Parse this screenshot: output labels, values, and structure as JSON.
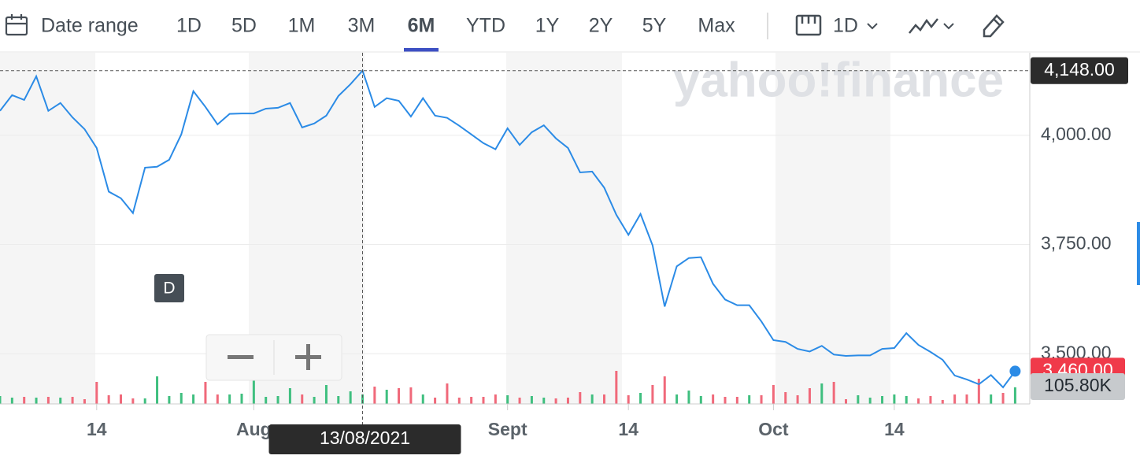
{
  "toolbar": {
    "date_range": "Date range",
    "ranges": [
      "1D",
      "5D",
      "1M",
      "3M",
      "6M",
      "YTD",
      "1Y",
      "2Y",
      "5Y",
      "Max"
    ],
    "selected_range": 4,
    "interval": "1D"
  },
  "watermark": "yahoo!finance",
  "badge": "D",
  "chart_data": {
    "type": "line",
    "categories": [
      null,
      null,
      null,
      null,
      null,
      null,
      null,
      null,
      "14",
      null,
      null,
      null,
      null,
      null,
      null,
      null,
      null,
      null,
      null,
      null,
      null,
      "Aug",
      null,
      null,
      null,
      null,
      null,
      null,
      null,
      null,
      null,
      null,
      null,
      null,
      null,
      null,
      null,
      null,
      null,
      null,
      null,
      null,
      "Sept",
      null,
      null,
      null,
      null,
      null,
      null,
      null,
      null,
      null,
      "14",
      null,
      null,
      null,
      null,
      null,
      null,
      null,
      null,
      null,
      null,
      null,
      "Oct",
      null,
      null,
      null,
      null,
      null,
      null,
      null,
      null,
      null,
      "14",
      null,
      null,
      null,
      null,
      null,
      null,
      null,
      null,
      null,
      null
    ],
    "series": [
      {
        "color": "#2b8be6",
        "values": [
          4056,
          4092,
          4081,
          4135,
          4056,
          4074,
          4041,
          4014,
          3971,
          3871,
          3856,
          3822,
          3926,
          3928,
          3944,
          4002,
          4101,
          4065,
          4025,
          4049,
          4050,
          4050,
          4061,
          4063,
          4074,
          4018,
          4027,
          4045,
          4090,
          4117,
          4148,
          4065,
          4085,
          4079,
          4043,
          4085,
          4045,
          4040,
          4022,
          4002,
          3982,
          3968,
          4016,
          3978,
          4007,
          4023,
          3993,
          3971,
          3915,
          3917,
          3880,
          3818,
          3772,
          3820,
          3748,
          3608,
          3700,
          3719,
          3721,
          3660,
          3624,
          3611,
          3611,
          3574,
          3531,
          3527,
          3511,
          3505,
          3518,
          3498,
          3495,
          3496,
          3496,
          3511,
          3513,
          3547,
          3520,
          3504,
          3486,
          3450,
          3441,
          3430,
          3451,
          3423,
          3460
        ]
      }
    ],
    "volume": {
      "values": [
        50,
        40,
        45,
        40,
        45,
        40,
        45,
        30,
        140,
        55,
        60,
        35,
        35,
        175,
        50,
        70,
        60,
        140,
        60,
        60,
        65,
        155,
        45,
        50,
        100,
        60,
        45,
        120,
        50,
        80,
        60,
        110,
        90,
        100,
        105,
        60,
        40,
        130,
        40,
        45,
        45,
        60,
        55,
        40,
        50,
        40,
        35,
        40,
        75,
        60,
        60,
        210,
        55,
        70,
        120,
        175,
        60,
        85,
        50,
        60,
        45,
        45,
        55,
        55,
        120,
        75,
        55,
        100,
        130,
        140,
        30,
        55,
        40,
        50,
        60,
        50,
        35,
        50,
        25,
        60,
        60,
        160,
        60,
        70,
        105.8
      ],
      "lim": [
        0,
        230
      ],
      "up_color": "#3fbf7f",
      "down_color": "#f0697a",
      "last_label": "105.80K"
    },
    "ylim": [
      3385,
      4189
    ],
    "yticks": [
      {
        "value": 3500,
        "label": "3,500.00"
      },
      {
        "value": 3750,
        "label": "3,750.00"
      },
      {
        "value": 4000,
        "label": "4,000.00"
      }
    ],
    "grid": true,
    "last_price": {
      "value": 3460,
      "label": "3,460.00"
    },
    "crosshair": {
      "index": 30,
      "date": "13/08/2021",
      "price": {
        "value": 4148,
        "label": "4,148.00"
      }
    }
  }
}
